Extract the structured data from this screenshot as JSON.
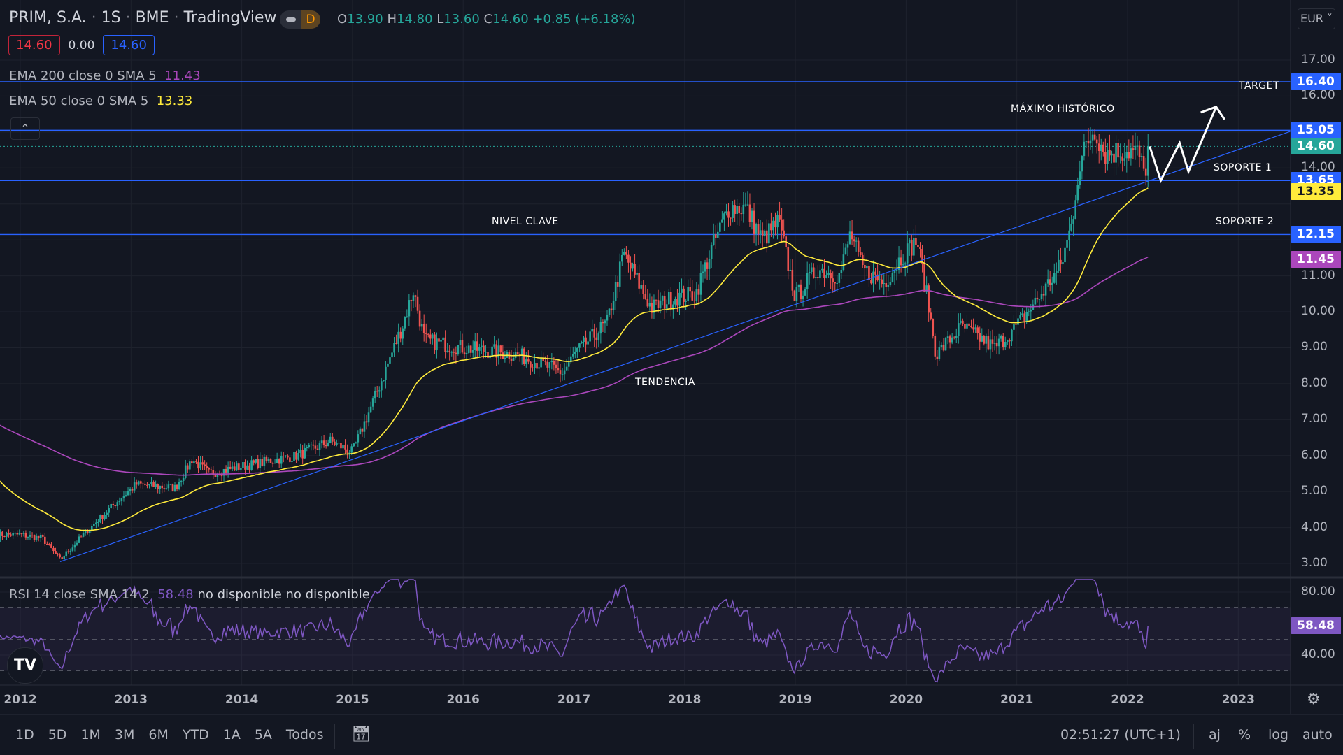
{
  "header": {
    "symbol": "PRIM, S.A.",
    "interval": "1S",
    "exchange": "BME",
    "source": "TradingView",
    "mode_badge": "D",
    "ohlc": {
      "o_label": "O",
      "o": "13.90",
      "h_label": "H",
      "h": "14.80",
      "l_label": "L",
      "l": "13.60",
      "c_label": "C",
      "c": "14.60",
      "change": "+0.85 (+6.18%)"
    },
    "sell_price": "14.60",
    "spread": "0.00",
    "buy_price": "14.60"
  },
  "indicators": {
    "ema200": {
      "label": "EMA 200 close 0 SMA 5",
      "value": "11.43",
      "color": "#ab47bc"
    },
    "ema50": {
      "label": "EMA 50 close 0 SMA 5",
      "value": "13.33",
      "color": "#ffeb3b"
    },
    "rsi": {
      "label": "RSI 14 close SMA 14 2",
      "value": "58.48",
      "na1": "no disponible",
      "na2": "no disponible",
      "color": "#7e57c2"
    }
  },
  "currency": "EUR",
  "chart_data": {
    "type": "candlestick",
    "title": "PRIM, S.A. · 1S · BME",
    "xlim": [
      2012,
      2023.5
    ],
    "ylim": [
      3,
      17
    ],
    "x_ticks": [
      "2012",
      "2013",
      "2014",
      "2015",
      "2016",
      "2017",
      "2018",
      "2019",
      "2020",
      "2021",
      "2022",
      "2023"
    ],
    "y_ticks": [
      "17.00",
      "16.00",
      "14.00",
      "11.00",
      "10.00",
      "9.00",
      "8.00",
      "7.00",
      "6.00",
      "5.00",
      "4.00",
      "3.00"
    ],
    "close_path": [
      [
        2012.0,
        3.8
      ],
      [
        2012.2,
        3.7
      ],
      [
        2012.36,
        3.1
      ],
      [
        2012.6,
        3.9
      ],
      [
        2012.9,
        4.8
      ],
      [
        2013.05,
        5.2
      ],
      [
        2013.4,
        5.1
      ],
      [
        2013.55,
        5.9
      ],
      [
        2013.7,
        5.5
      ],
      [
        2014.0,
        5.7
      ],
      [
        2014.5,
        6.0
      ],
      [
        2014.8,
        6.4
      ],
      [
        2015.0,
        6.1
      ],
      [
        2015.2,
        7.6
      ],
      [
        2015.45,
        9.6
      ],
      [
        2015.55,
        10.6
      ],
      [
        2015.65,
        9.2
      ],
      [
        2016.0,
        9.0
      ],
      [
        2016.5,
        8.8
      ],
      [
        2016.9,
        8.3
      ],
      [
        2017.0,
        8.8
      ],
      [
        2017.3,
        9.7
      ],
      [
        2017.45,
        11.6
      ],
      [
        2017.7,
        10.1
      ],
      [
        2017.9,
        10.4
      ],
      [
        2018.1,
        10.5
      ],
      [
        2018.25,
        11.8
      ],
      [
        2018.4,
        12.9
      ],
      [
        2018.55,
        12.9
      ],
      [
        2018.7,
        12.0
      ],
      [
        2018.85,
        12.5
      ],
      [
        2019.0,
        10.4
      ],
      [
        2019.2,
        11.2
      ],
      [
        2019.4,
        11.0
      ],
      [
        2019.5,
        12.2
      ],
      [
        2019.6,
        11.2
      ],
      [
        2019.8,
        10.8
      ],
      [
        2019.95,
        11.5
      ],
      [
        2020.1,
        12.0
      ],
      [
        2020.2,
        10.2
      ],
      [
        2020.27,
        8.8
      ],
      [
        2020.5,
        9.6
      ],
      [
        2020.8,
        9.0
      ],
      [
        2021.0,
        9.6
      ],
      [
        2021.2,
        10.4
      ],
      [
        2021.4,
        11.3
      ],
      [
        2021.5,
        12.5
      ],
      [
        2021.55,
        13.8
      ],
      [
        2021.62,
        14.6
      ],
      [
        2021.7,
        15.1
      ],
      [
        2021.8,
        14.4
      ],
      [
        2022.0,
        14.5
      ],
      [
        2022.1,
        14.4
      ],
      [
        2022.15,
        13.8
      ],
      [
        2022.2,
        14.6
      ]
    ],
    "levels": [
      {
        "value": 16.4,
        "label": "16.40",
        "annotation": "TARGET",
        "color": "#2962ff"
      },
      {
        "value": 15.05,
        "label": "15.05",
        "annotation": "MÁXIMO HISTÓRICO",
        "color": "#2962ff"
      },
      {
        "value": 13.65,
        "label": "13.65",
        "annotation": "SOPORTE 1",
        "color": "#2962ff"
      },
      {
        "value": 12.15,
        "label": "12.15",
        "annotation": "SOPORTE 2",
        "color": "#2962ff"
      }
    ],
    "key_level_annotation": "NIVEL CLAVE",
    "trendline": {
      "from": [
        2012.36,
        3.05
      ],
      "to": [
        2023.5,
        15.05
      ],
      "annotation": "TENDENCIA",
      "color": "#2962ff"
    },
    "last_price": {
      "value": 14.6,
      "label": "14.60",
      "color": "#26a69a"
    },
    "ema50_tag": {
      "value": 13.35,
      "label": "13.35",
      "color": "#ffeb3b"
    },
    "ema200_tag": {
      "value": 11.45,
      "label": "11.45",
      "color": "#ab47bc"
    },
    "projection": [
      [
        2022.2,
        14.6
      ],
      [
        2022.3,
        13.65
      ],
      [
        2022.47,
        14.7
      ],
      [
        2022.55,
        13.9
      ],
      [
        2022.8,
        15.7
      ]
    ],
    "rsi": {
      "ylim": [
        20,
        90
      ],
      "ticks": [
        "80.00",
        "40.00"
      ],
      "bands": [
        70,
        50,
        30
      ],
      "last": "58.48"
    },
    "colors": {
      "up": "#26a69a",
      "down": "#ef5350",
      "background": "#131722",
      "grid": "#1e222d"
    }
  },
  "bottom_bar": {
    "ranges": [
      "1D",
      "5D",
      "1M",
      "3M",
      "6M",
      "YTD",
      "1A",
      "5A",
      "Todos"
    ],
    "time": "02:51:27 (UTC+1)",
    "aj": "aj",
    "percent": "%",
    "log": "log",
    "auto": "auto"
  }
}
